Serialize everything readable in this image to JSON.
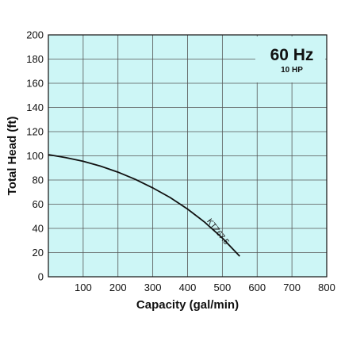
{
  "chart_data": {
    "type": "line",
    "xlabel": "Capacity (gal/min)",
    "ylabel": "Total Head (ft)",
    "xlim": [
      0,
      800
    ],
    "ylim": [
      0,
      200
    ],
    "x_ticks": [
      100,
      200,
      300,
      400,
      500,
      600,
      700,
      800
    ],
    "y_ticks": [
      0,
      20,
      40,
      60,
      80,
      100,
      120,
      140,
      160,
      180,
      200
    ],
    "grid": true,
    "background_color": "#cdf6f6",
    "line_color": "#111111",
    "frequency_label": "60 Hz",
    "power_label": "10 HP",
    "series": [
      {
        "name": "KTZ67.5",
        "x": [
          0,
          50,
          100,
          150,
          200,
          250,
          300,
          350,
          400,
          450,
          500,
          550
        ],
        "y": [
          101,
          98.5,
          95.5,
          91.5,
          86.5,
          80.5,
          73.5,
          65.5,
          56,
          45,
          32,
          17
        ]
      }
    ]
  }
}
